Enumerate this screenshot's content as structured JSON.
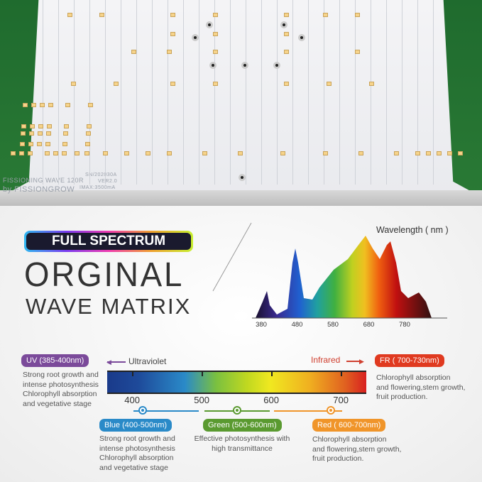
{
  "board": {
    "silkscreen": [
      "FISSIONING WAVE 120R",
      "by FISSIONGROW"
    ],
    "serial": [
      "SN/202030A",
      "VER2.0",
      "IMAX:3500mA"
    ]
  },
  "badge": "FULL SPECTRUM",
  "title_line1": "ORGINAL",
  "title_line2": "WAVE MATRIX",
  "spectrum": {
    "label": "Wavelength ( nm )",
    "ticks": [
      "380",
      "480",
      "580",
      "680",
      "780"
    ]
  },
  "scale": {
    "left_label": "Ultraviolet",
    "right_label": "Infrared",
    "ticks": [
      "400",
      "500",
      "600",
      "700"
    ],
    "colors": {
      "uv": "#7b4a9a",
      "blue": "#2a8ac8",
      "green": "#5a9a30",
      "red": "#f0952a",
      "fr": "#e03a20"
    }
  },
  "bands": {
    "uv": {
      "label": "UV (385-400nm)",
      "desc": [
        "Strong root growth and",
        "intense photosynthesis",
        "Chlorophyll absorption",
        "and vegetative stage"
      ]
    },
    "fr": {
      "label": "FR ( 700-730nm)",
      "desc": [
        "Chlorophyll absorption",
        "and flowering,stem growth,",
        "fruit production."
      ]
    },
    "blue": {
      "label": "Blue (400-500nm)",
      "desc": [
        "Strong root growth and",
        "intense photosynthesis",
        "Chlorophyll absorption",
        "and vegetative stage"
      ]
    },
    "green": {
      "label": "Green (500-600nm)",
      "desc": [
        "Effective photosynthesis with",
        "high transmittance"
      ]
    },
    "red": {
      "label": "Red ( 600-700nm)",
      "desc": [
        "Chlorophyll absorption",
        "and flowering,stem growth,",
        "fruit production."
      ]
    }
  }
}
